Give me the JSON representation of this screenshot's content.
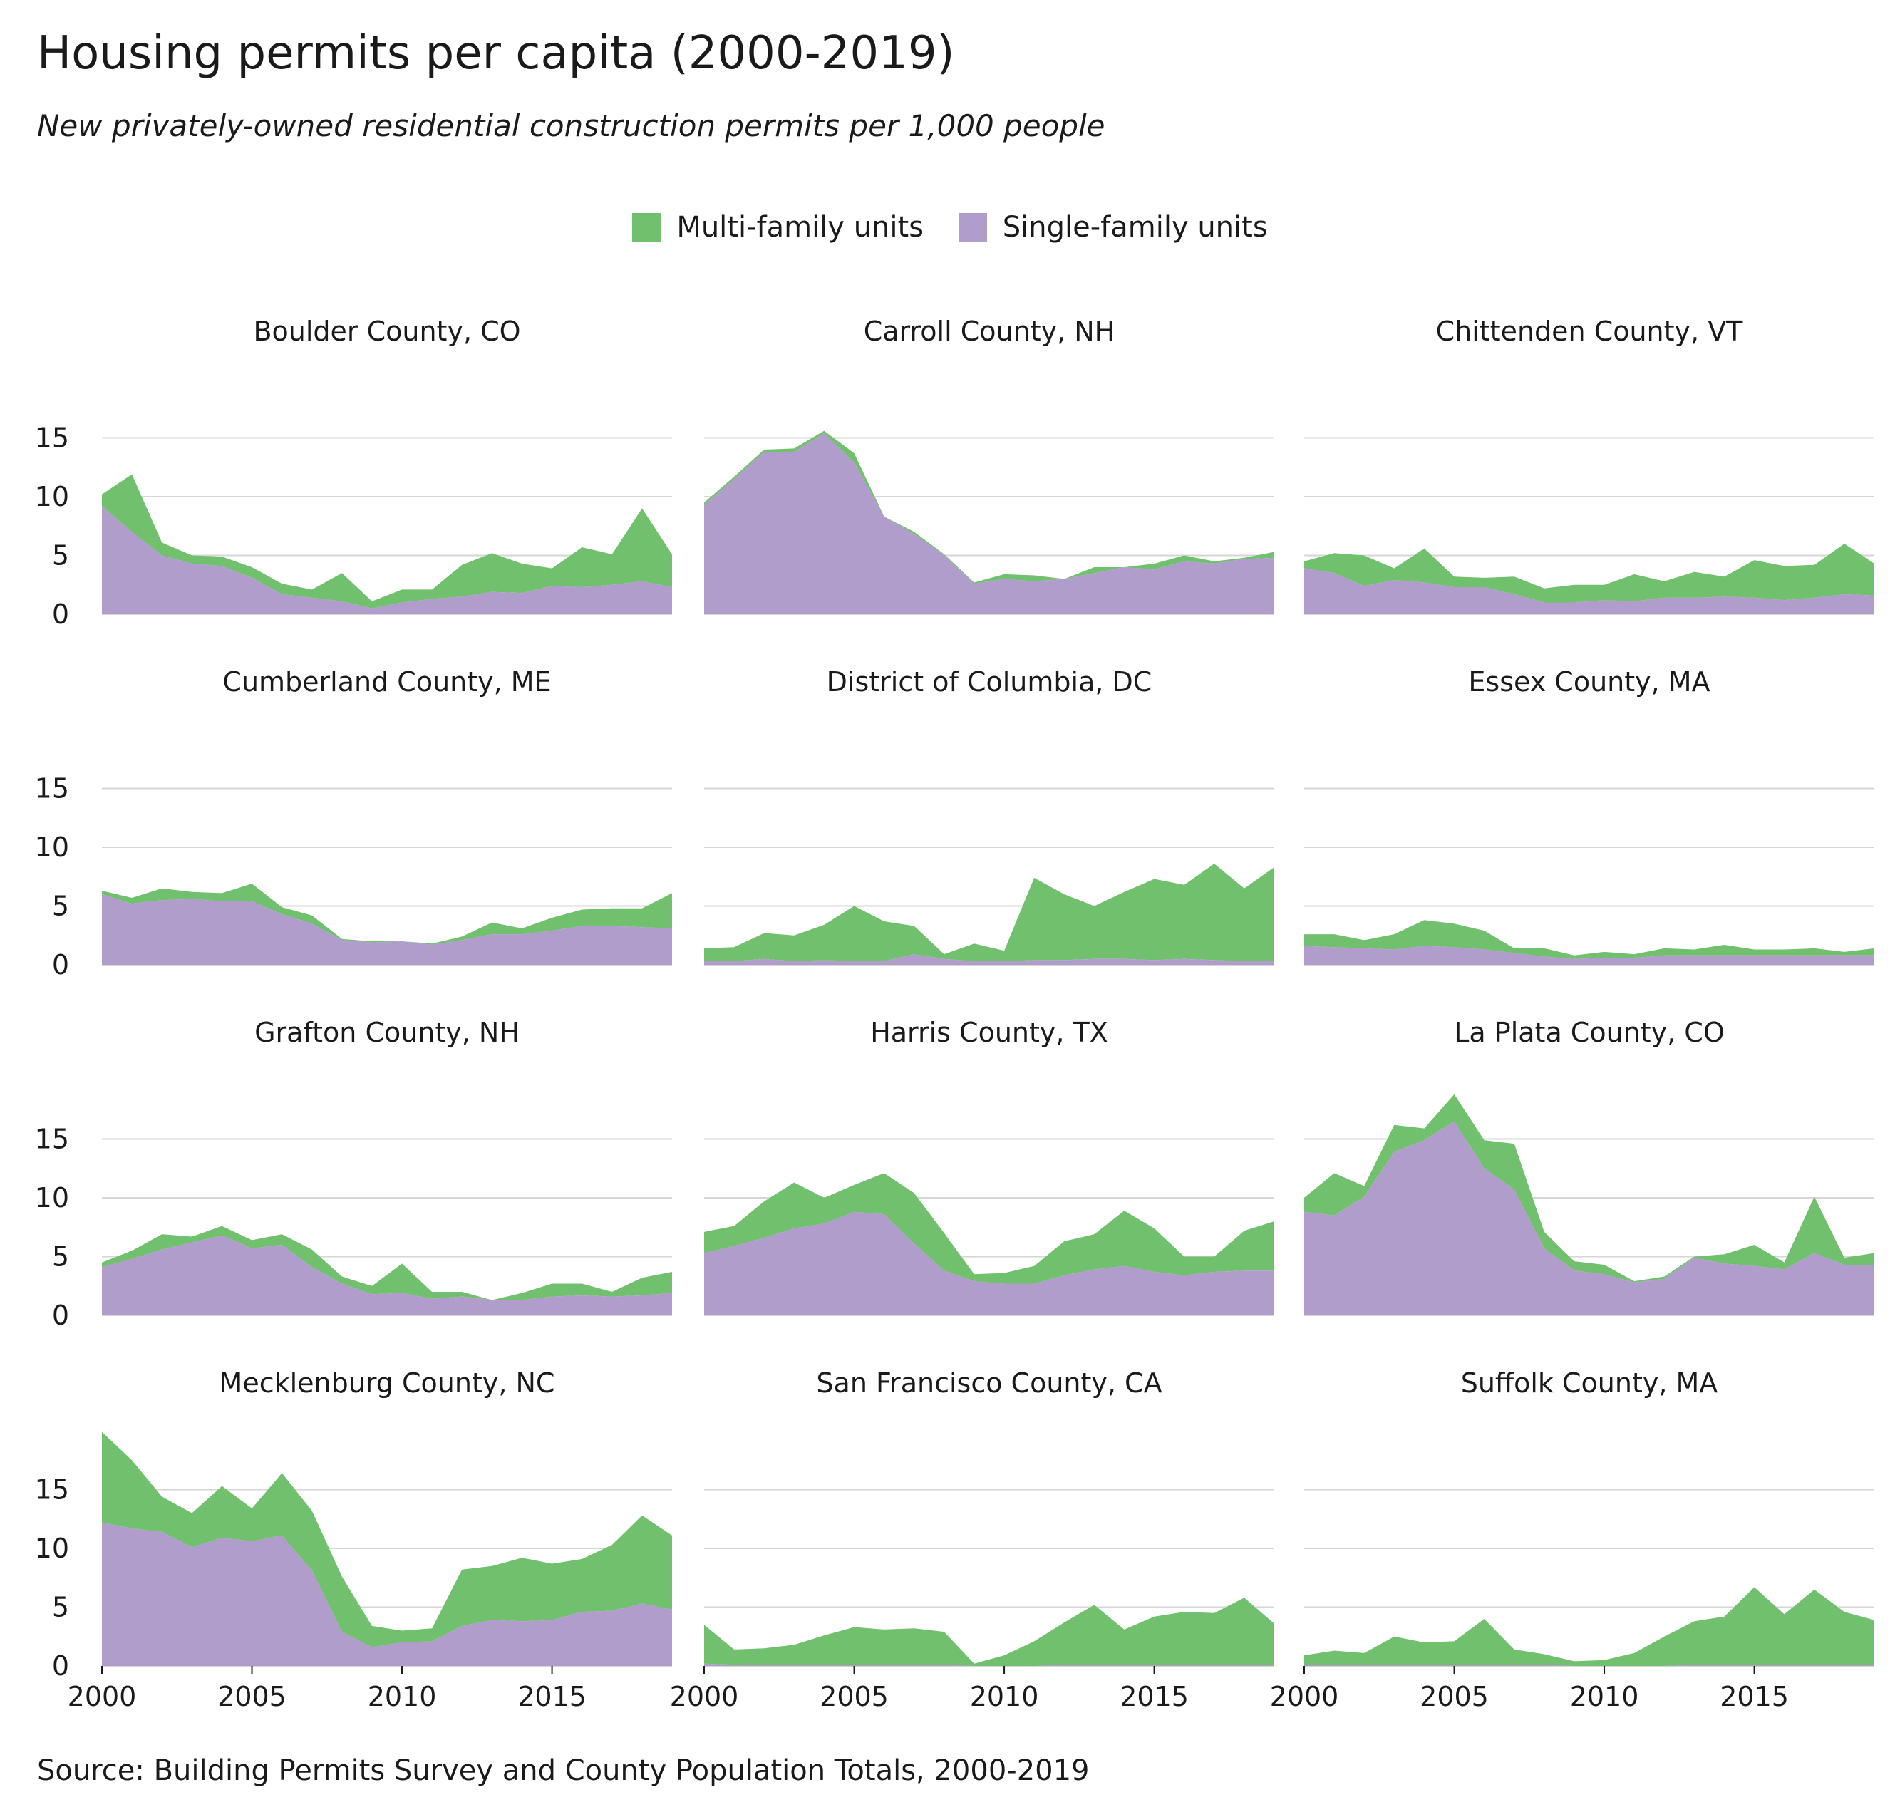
{
  "title": "Housing permits per capita (2000-2019)",
  "subtitle": "New privately-owned residential construction permits per 1,000 people",
  "source": "Source: Building Permits Survey and County Population Totals, 2000-2019",
  "legend": [
    {
      "label": "Multi-family units",
      "color": "#71c06e"
    },
    {
      "label": "Single-family units",
      "color": "#b09dcb"
    }
  ],
  "chart_data": {
    "type": "area",
    "stacked": true,
    "layout": "small-multiples-4x3",
    "x": [
      2000,
      2001,
      2002,
      2003,
      2004,
      2005,
      2006,
      2007,
      2008,
      2009,
      2010,
      2011,
      2012,
      2013,
      2014,
      2015,
      2016,
      2017,
      2018,
      2019
    ],
    "xticks": [
      2000,
      2005,
      2010,
      2015
    ],
    "yticks": [
      0,
      5,
      10,
      15
    ],
    "ylim": [
      0,
      20
    ],
    "xlim": [
      2000,
      2019
    ],
    "colors": {
      "multi": "#71c06e",
      "single": "#b09dcb"
    },
    "grid": "horizontal",
    "panels": [
      {
        "name": "Boulder County, CO",
        "single": [
          9.2,
          7.0,
          5.0,
          4.3,
          4.1,
          3.1,
          1.7,
          1.4,
          1.1,
          0.5,
          1.0,
          1.3,
          1.5,
          1.9,
          1.8,
          2.4,
          2.3,
          2.5,
          2.8,
          2.3
        ],
        "multi": [
          1.0,
          4.9,
          1.1,
          0.7,
          0.8,
          0.9,
          0.9,
          0.7,
          2.4,
          0.6,
          1.1,
          0.8,
          2.7,
          3.3,
          2.5,
          1.5,
          3.4,
          2.6,
          6.2,
          2.8
        ]
      },
      {
        "name": "Carroll County, NH",
        "single": [
          9.3,
          11.5,
          13.8,
          13.8,
          15.4,
          12.9,
          8.3,
          6.8,
          5.0,
          2.6,
          3.0,
          2.8,
          3.0,
          3.5,
          4.0,
          3.8,
          4.5,
          4.3,
          4.7,
          4.8
        ],
        "multi": [
          0.2,
          0.2,
          0.2,
          0.3,
          0.2,
          0.8,
          0.0,
          0.2,
          0.1,
          0.1,
          0.4,
          0.5,
          0.0,
          0.5,
          0.0,
          0.5,
          0.5,
          0.2,
          0.1,
          0.5
        ]
      },
      {
        "name": "Chittenden County, VT",
        "single": [
          3.9,
          3.5,
          2.4,
          2.9,
          2.7,
          2.3,
          2.3,
          1.7,
          1.0,
          1.0,
          1.2,
          1.1,
          1.4,
          1.4,
          1.5,
          1.4,
          1.2,
          1.4,
          1.7,
          1.6
        ],
        "multi": [
          0.6,
          1.7,
          2.6,
          1.0,
          2.9,
          0.9,
          0.8,
          1.5,
          1.2,
          1.5,
          1.3,
          2.3,
          1.4,
          2.2,
          1.7,
          3.2,
          2.9,
          2.8,
          4.3,
          2.7
        ]
      },
      {
        "name": "Cumberland County, ME",
        "single": [
          6.0,
          5.2,
          5.5,
          5.6,
          5.4,
          5.4,
          4.3,
          3.5,
          2.1,
          1.9,
          2.0,
          1.7,
          2.1,
          2.6,
          2.6,
          2.9,
          3.3,
          3.3,
          3.2,
          3.1
        ],
        "multi": [
          0.3,
          0.5,
          1.0,
          0.6,
          0.7,
          1.5,
          0.6,
          0.7,
          0.1,
          0.1,
          0.0,
          0.1,
          0.3,
          1.0,
          0.5,
          1.1,
          1.4,
          1.5,
          1.6,
          3.0
        ]
      },
      {
        "name": "District of Columbia, DC",
        "single": [
          0.3,
          0.3,
          0.5,
          0.3,
          0.4,
          0.3,
          0.3,
          0.9,
          0.5,
          0.3,
          0.3,
          0.4,
          0.4,
          0.5,
          0.5,
          0.4,
          0.5,
          0.4,
          0.3,
          0.3
        ],
        "multi": [
          1.1,
          1.2,
          2.2,
          2.2,
          3.0,
          4.7,
          3.4,
          2.4,
          0.4,
          1.5,
          0.9,
          7.0,
          5.6,
          4.5,
          5.7,
          6.9,
          6.3,
          8.2,
          6.2,
          8.0
        ]
      },
      {
        "name": "Essex County, MA",
        "single": [
          1.6,
          1.5,
          1.4,
          1.3,
          1.6,
          1.5,
          1.3,
          1.0,
          0.7,
          0.5,
          0.6,
          0.6,
          0.8,
          0.8,
          0.8,
          0.8,
          0.8,
          0.8,
          0.8,
          0.8
        ],
        "multi": [
          1.0,
          1.1,
          0.7,
          1.3,
          2.2,
          2.0,
          1.6,
          0.4,
          0.7,
          0.3,
          0.5,
          0.3,
          0.6,
          0.5,
          0.9,
          0.5,
          0.5,
          0.6,
          0.3,
          0.6
        ]
      },
      {
        "name": "Grafton County, NH",
        "single": [
          4.1,
          4.8,
          5.6,
          6.2,
          6.8,
          5.7,
          6.0,
          4.1,
          2.7,
          1.8,
          1.9,
          1.4,
          1.6,
          1.3,
          1.3,
          1.6,
          1.7,
          1.6,
          1.7,
          1.9
        ],
        "multi": [
          0.4,
          0.7,
          1.3,
          0.5,
          0.8,
          0.7,
          0.9,
          1.5,
          0.6,
          0.7,
          2.5,
          0.6,
          0.4,
          0.0,
          0.6,
          1.1,
          1.0,
          0.4,
          1.5,
          1.8
        ]
      },
      {
        "name": "Harris County, TX",
        "single": [
          5.3,
          5.9,
          6.6,
          7.4,
          7.8,
          8.8,
          8.6,
          6.1,
          3.8,
          2.9,
          2.7,
          2.7,
          3.4,
          3.9,
          4.2,
          3.7,
          3.4,
          3.7,
          3.8,
          3.8
        ],
        "multi": [
          1.8,
          1.7,
          3.1,
          3.9,
          2.2,
          2.3,
          3.5,
          4.3,
          3.2,
          0.6,
          0.9,
          1.5,
          2.9,
          3.0,
          4.7,
          3.7,
          1.6,
          1.3,
          3.4,
          4.2
        ]
      },
      {
        "name": "La Plata County, CO",
        "single": [
          8.8,
          8.5,
          10.1,
          13.9,
          14.9,
          16.5,
          12.5,
          10.7,
          5.7,
          3.8,
          3.5,
          2.8,
          3.1,
          4.9,
          4.4,
          4.2,
          3.9,
          5.3,
          4.3,
          4.3
        ],
        "multi": [
          1.2,
          3.6,
          0.9,
          2.3,
          1.0,
          2.3,
          2.4,
          3.9,
          1.4,
          0.8,
          0.8,
          0.1,
          0.2,
          0.1,
          0.8,
          1.8,
          0.6,
          4.8,
          0.6,
          1.0
        ]
      },
      {
        "name": "Mecklenburg County, NC",
        "single": [
          12.2,
          11.7,
          11.4,
          10.1,
          10.9,
          10.6,
          11.1,
          8.1,
          2.9,
          1.6,
          2.0,
          2.1,
          3.4,
          3.9,
          3.8,
          3.9,
          4.6,
          4.7,
          5.3,
          4.8
        ],
        "multi": [
          7.7,
          5.8,
          3.0,
          2.9,
          4.4,
          2.8,
          5.3,
          5.1,
          4.7,
          1.8,
          1.0,
          1.1,
          4.8,
          4.6,
          5.4,
          4.8,
          4.5,
          5.6,
          7.5,
          6.3
        ]
      },
      {
        "name": "San Francisco County, CA",
        "single": [
          0.2,
          0.1,
          0.1,
          0.1,
          0.1,
          0.1,
          0.1,
          0.1,
          0.1,
          0.0,
          0.0,
          0.0,
          0.1,
          0.1,
          0.1,
          0.1,
          0.1,
          0.1,
          0.1,
          0.1
        ],
        "multi": [
          3.3,
          1.3,
          1.4,
          1.7,
          2.5,
          3.2,
          3.0,
          3.1,
          2.8,
          0.2,
          0.9,
          2.1,
          3.6,
          5.1,
          3.0,
          4.1,
          4.5,
          4.4,
          5.7,
          3.5
        ]
      },
      {
        "name": "Suffolk County, MA",
        "single": [
          0.1,
          0.1,
          0.1,
          0.1,
          0.1,
          0.1,
          0.1,
          0.1,
          0.1,
          0.0,
          0.0,
          0.0,
          0.0,
          0.1,
          0.1,
          0.1,
          0.1,
          0.1,
          0.1,
          0.1
        ],
        "multi": [
          0.8,
          1.2,
          1.0,
          2.4,
          1.9,
          2.0,
          3.9,
          1.3,
          0.9,
          0.4,
          0.5,
          1.1,
          2.5,
          3.7,
          4.1,
          6.6,
          4.3,
          6.4,
          4.5,
          3.8
        ]
      }
    ]
  }
}
